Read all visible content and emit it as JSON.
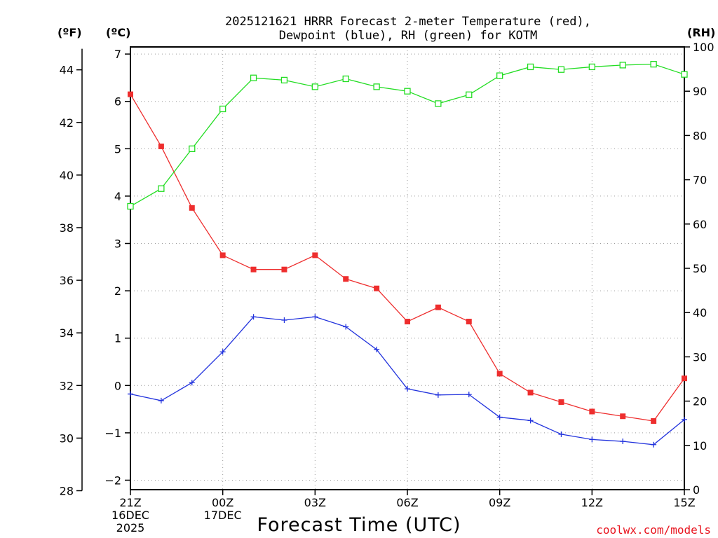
{
  "chart_data": {
    "type": "line",
    "title_line1": "2025121621 HRRR Forecast 2-meter Temperature (red),",
    "title_line2": "Dewpoint (blue), RH (green) for KOTM",
    "units": {
      "f": "(ºF)",
      "c": "(ºC)",
      "rh": "(RH)"
    },
    "xlabel": "Forecast Time (UTC)",
    "credit": "coolwx.com/models",
    "x_hours": [
      0,
      1,
      2,
      3,
      4,
      5,
      6,
      7,
      8,
      9,
      10,
      11,
      12,
      13,
      14,
      15,
      16,
      17,
      18
    ],
    "x_ticks": [
      {
        "hour": 0,
        "label": "21Z",
        "sub1": "16DEC",
        "sub2": "2025"
      },
      {
        "hour": 3,
        "label": "00Z",
        "sub1": "17DEC",
        "sub2": ""
      },
      {
        "hour": 6,
        "label": "03Z",
        "sub1": "",
        "sub2": ""
      },
      {
        "hour": 9,
        "label": "06Z",
        "sub1": "",
        "sub2": ""
      },
      {
        "hour": 12,
        "label": "09Z",
        "sub1": "",
        "sub2": ""
      },
      {
        "hour": 15,
        "label": "12Z",
        "sub1": "",
        "sub2": ""
      },
      {
        "hour": 18,
        "label": "15Z",
        "sub1": "",
        "sub2": ""
      }
    ],
    "x_range": [
      0,
      18
    ],
    "celsius_range": [
      -2.2,
      7.15
    ],
    "celsius_ticks": [
      "7",
      "6",
      "5",
      "4",
      "3",
      "2",
      "1",
      "0",
      "−1",
      "−2"
    ],
    "fahrenheit_ticks": [
      "44",
      "42",
      "40",
      "38",
      "36",
      "34",
      "32",
      "30",
      "28"
    ],
    "rh_range": [
      0,
      100
    ],
    "rh_ticks": [
      "100",
      "90",
      "80",
      "70",
      "60",
      "50",
      "40",
      "30",
      "20",
      "10",
      "0"
    ],
    "series": [
      {
        "name": "Temperature",
        "unit": "C",
        "color": "#ee2e2e",
        "marker": "filled-square",
        "values": [
          6.15,
          5.05,
          3.75,
          2.75,
          2.45,
          2.45,
          2.75,
          2.25,
          2.05,
          1.35,
          1.65,
          1.35,
          0.25,
          -0.15,
          -0.35,
          -0.55,
          -0.65,
          -0.75,
          0.15
        ]
      },
      {
        "name": "Dewpoint",
        "unit": "C",
        "color": "#2233dd",
        "marker": "plus",
        "values": [
          -0.18,
          -0.32,
          0.06,
          0.71,
          1.45,
          1.38,
          1.45,
          1.24,
          0.76,
          -0.07,
          -0.2,
          -0.19,
          -0.67,
          -0.74,
          -1.03,
          -1.14,
          -1.18,
          -1.25,
          -0.72
        ]
      },
      {
        "name": "RH",
        "unit": "%",
        "color": "#22dd22",
        "marker": "open-square",
        "values": [
          64,
          68,
          77,
          86,
          93,
          92.5,
          91,
          92.8,
          91,
          90,
          87.2,
          89.2,
          93.5,
          95.5,
          94.9,
          95.5,
          95.9,
          96.1,
          93.8
        ]
      }
    ]
  }
}
